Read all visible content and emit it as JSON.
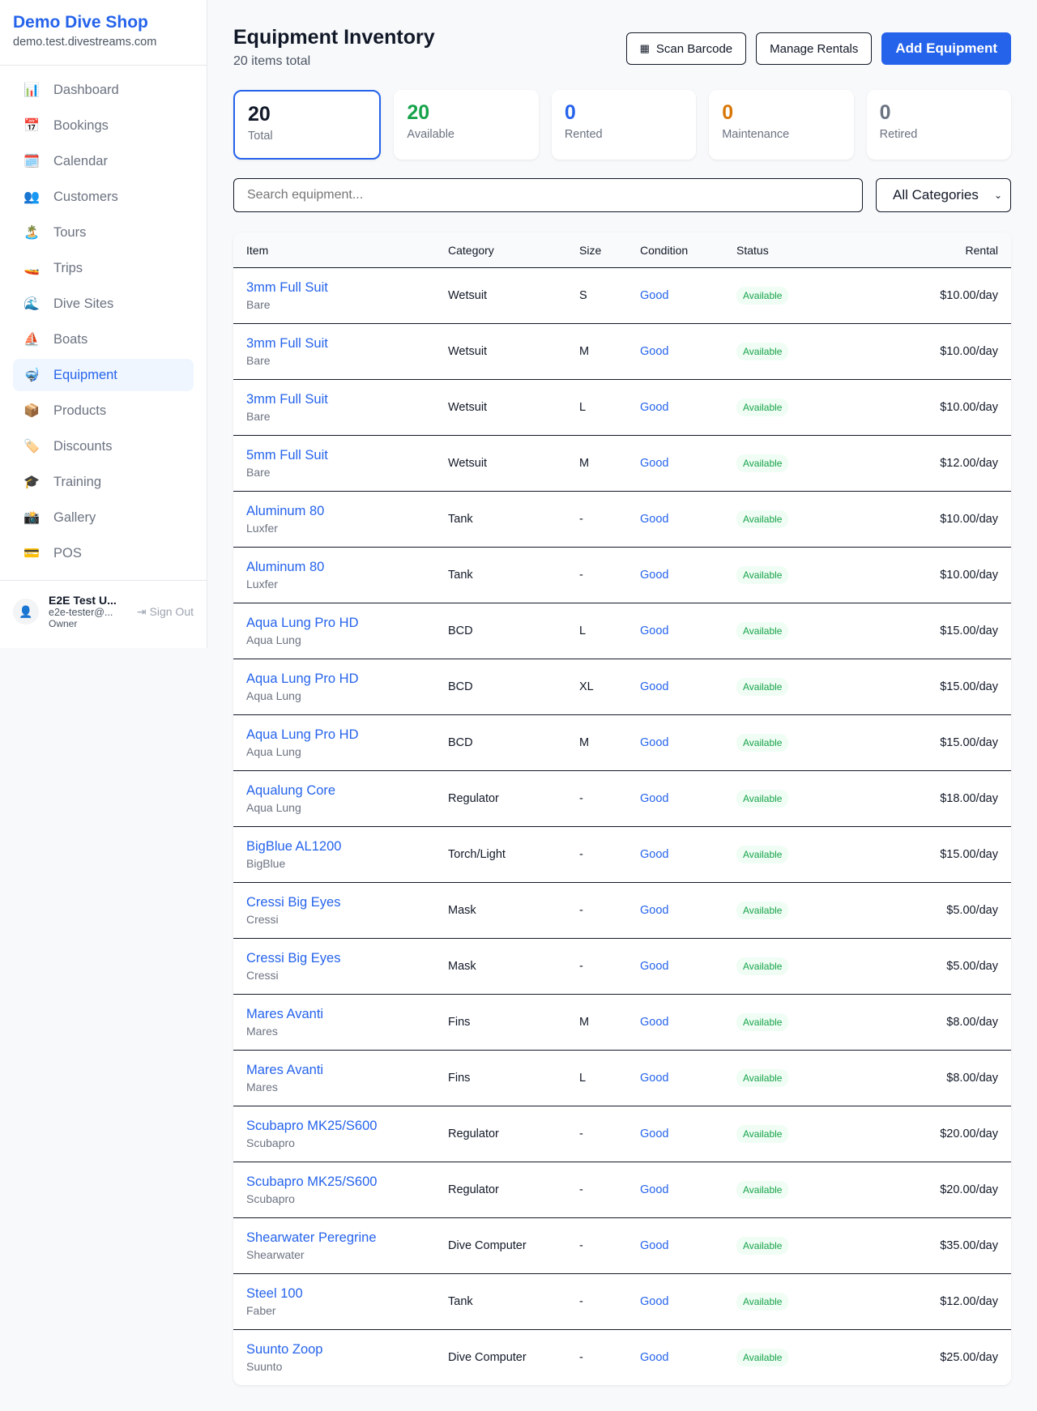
{
  "sidebar": {
    "shop_name": "Demo Dive Shop",
    "domain": "demo.test.divestreams.com",
    "items": [
      {
        "icon": "📊",
        "label": "Dashboard"
      },
      {
        "icon": "📅",
        "label": "Bookings"
      },
      {
        "icon": "🗓️",
        "label": "Calendar"
      },
      {
        "icon": "👥",
        "label": "Customers"
      },
      {
        "icon": "🏝️",
        "label": "Tours"
      },
      {
        "icon": "🚤",
        "label": "Trips"
      },
      {
        "icon": "🌊",
        "label": "Dive Sites"
      },
      {
        "icon": "⛵",
        "label": "Boats"
      },
      {
        "icon": "🤿",
        "label": "Equipment",
        "active": true
      },
      {
        "icon": "📦",
        "label": "Products"
      },
      {
        "icon": "🏷️",
        "label": "Discounts"
      },
      {
        "icon": "🎓",
        "label": "Training"
      },
      {
        "icon": "📸",
        "label": "Gallery"
      },
      {
        "icon": "💳",
        "label": "POS"
      }
    ],
    "user": {
      "name": "E2E Test U...",
      "email": "e2e-tester@...",
      "role": "Owner",
      "sign_out": "Sign Out"
    }
  },
  "header": {
    "title": "Equipment Inventory",
    "subtitle": "20 items total",
    "scan_barcode": "Scan Barcode",
    "manage_rentals": "Manage Rentals",
    "add_equipment": "Add Equipment"
  },
  "stats": [
    {
      "value": "20",
      "label": "Total",
      "color": "#111827"
    },
    {
      "value": "20",
      "label": "Available",
      "color": "#16a34a"
    },
    {
      "value": "0",
      "label": "Rented",
      "color": "#2563eb"
    },
    {
      "value": "0",
      "label": "Maintenance",
      "color": "#d97706"
    },
    {
      "value": "0",
      "label": "Retired",
      "color": "#6b7280"
    }
  ],
  "filters": {
    "search_placeholder": "Search equipment...",
    "category": "All Categories"
  },
  "table": {
    "columns": [
      "Item",
      "Category",
      "Size",
      "Condition",
      "Status",
      "Rental"
    ],
    "rows": [
      [
        "3mm Full Suit",
        "Bare",
        "Wetsuit",
        "S",
        "Good",
        "Available",
        "$10.00/day"
      ],
      [
        "3mm Full Suit",
        "Bare",
        "Wetsuit",
        "M",
        "Good",
        "Available",
        "$10.00/day"
      ],
      [
        "3mm Full Suit",
        "Bare",
        "Wetsuit",
        "L",
        "Good",
        "Available",
        "$10.00/day"
      ],
      [
        "5mm Full Suit",
        "Bare",
        "Wetsuit",
        "M",
        "Good",
        "Available",
        "$12.00/day"
      ],
      [
        "Aluminum 80",
        "Luxfer",
        "Tank",
        "-",
        "Good",
        "Available",
        "$10.00/day"
      ],
      [
        "Aluminum 80",
        "Luxfer",
        "Tank",
        "-",
        "Good",
        "Available",
        "$10.00/day"
      ],
      [
        "Aqua Lung Pro HD",
        "Aqua Lung",
        "BCD",
        "L",
        "Good",
        "Available",
        "$15.00/day"
      ],
      [
        "Aqua Lung Pro HD",
        "Aqua Lung",
        "BCD",
        "XL",
        "Good",
        "Available",
        "$15.00/day"
      ],
      [
        "Aqua Lung Pro HD",
        "Aqua Lung",
        "BCD",
        "M",
        "Good",
        "Available",
        "$15.00/day"
      ],
      [
        "Aqualung Core",
        "Aqua Lung",
        "Regulator",
        "-",
        "Good",
        "Available",
        "$18.00/day"
      ],
      [
        "BigBlue AL1200",
        "BigBlue",
        "Torch/Light",
        "-",
        "Good",
        "Available",
        "$15.00/day"
      ],
      [
        "Cressi Big Eyes",
        "Cressi",
        "Mask",
        "-",
        "Good",
        "Available",
        "$5.00/day"
      ],
      [
        "Cressi Big Eyes",
        "Cressi",
        "Mask",
        "-",
        "Good",
        "Available",
        "$5.00/day"
      ],
      [
        "Mares Avanti",
        "Mares",
        "Fins",
        "M",
        "Good",
        "Available",
        "$8.00/day"
      ],
      [
        "Mares Avanti",
        "Mares",
        "Fins",
        "L",
        "Good",
        "Available",
        "$8.00/day"
      ],
      [
        "Scubapro MK25/S600",
        "Scubapro",
        "Regulator",
        "-",
        "Good",
        "Available",
        "$20.00/day"
      ],
      [
        "Scubapro MK25/S600",
        "Scubapro",
        "Regulator",
        "-",
        "Good",
        "Available",
        "$20.00/day"
      ],
      [
        "Shearwater Peregrine",
        "Shearwater",
        "Dive Computer",
        "-",
        "Good",
        "Available",
        "$35.00/day"
      ],
      [
        "Steel 100",
        "Faber",
        "Tank",
        "-",
        "Good",
        "Available",
        "$12.00/day"
      ],
      [
        "Suunto Zoop",
        "Suunto",
        "Dive Computer",
        "-",
        "Good",
        "Available",
        "$25.00/day"
      ]
    ]
  }
}
